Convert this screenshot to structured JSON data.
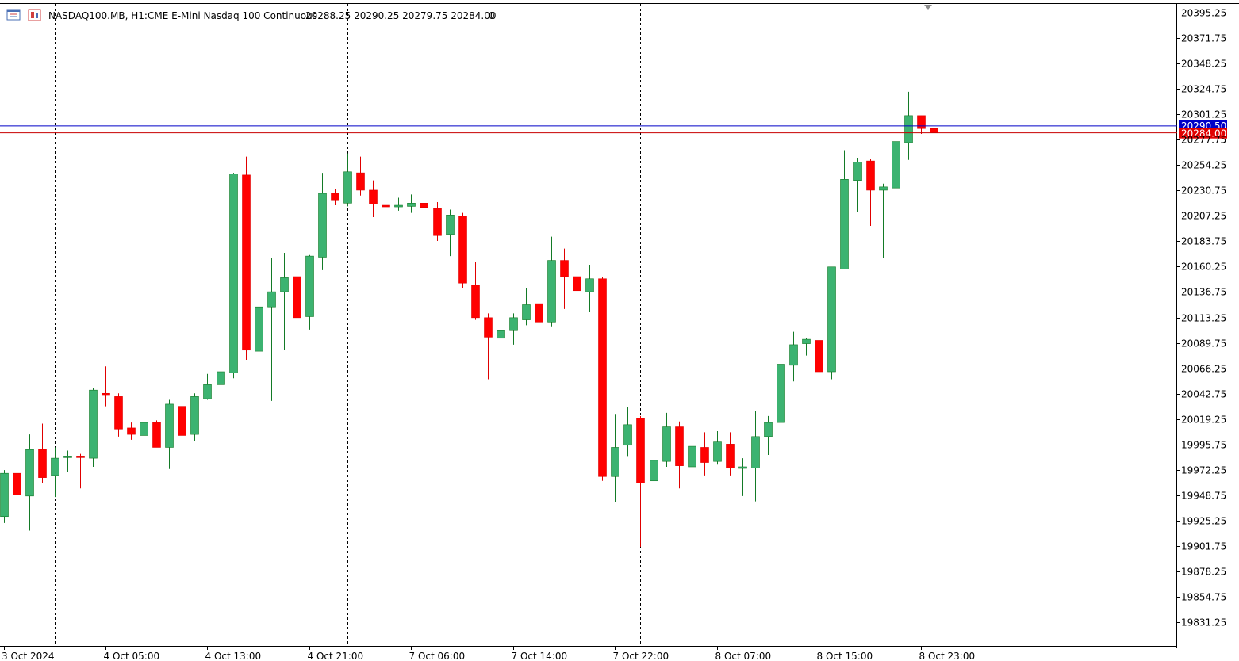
{
  "header": {
    "symbol": "NASDAQ100.MB, H1:",
    "description": "CME E-Mini Nasdaq 100 Continuous",
    "ohlc": "20288.25 20290.25 20279.75 20284.00",
    "volume": "0"
  },
  "icons": [
    "chart-menu-icon",
    "chart-window-icon"
  ],
  "colors": {
    "bull": "#3cb371",
    "bear": "#ff0000",
    "bid_line": "#0000c8",
    "ask_line": "#c80000",
    "bid_tag": "#0000c8",
    "ask_tag": "#e00000"
  },
  "price_tags": {
    "bid": "20290.50",
    "ask": "20284.00"
  },
  "chart_data": {
    "type": "candlestick",
    "y_ticks": [
      "20395.25",
      "20371.75",
      "20348.25",
      "20324.75",
      "20301.25",
      "20277.75",
      "20254.25",
      "20230.75",
      "20207.25",
      "20183.75",
      "20160.25",
      "20136.75",
      "20113.25",
      "20089.75",
      "20066.25",
      "20042.75",
      "20019.25",
      "19995.75",
      "19972.25",
      "19948.75",
      "19925.25",
      "19901.75",
      "19878.25",
      "19854.75",
      "19831.25"
    ],
    "ylim": [
      19818,
      20403
    ],
    "x_labels": [
      "3 Oct 2024",
      "4 Oct 05:00",
      "4 Oct 13:00",
      "4 Oct 21:00",
      "7 Oct 06:00",
      "7 Oct 14:00",
      "7 Oct 22:00",
      "8 Oct 07:00",
      "8 Oct 15:00",
      "8 Oct 23:00"
    ],
    "x_label_index": [
      0,
      8,
      16,
      24,
      32,
      40,
      48,
      56,
      64,
      72
    ],
    "period_separator_index": [
      4,
      27,
      50,
      73
    ],
    "bid_price": 20290.5,
    "ask_price": 20284.0,
    "candles": [
      [
        19929.0,
        19972.0,
        19923.0,
        19969.0
      ],
      [
        19969.0,
        19977.0,
        19939.0,
        19949.0
      ],
      [
        19948.0,
        20005.0,
        19916.0,
        19991.0
      ],
      [
        19991.0,
        20015.0,
        19960.0,
        19965.0
      ],
      [
        19967.0,
        19993.0,
        19947.0,
        19983.0
      ],
      [
        19984.0,
        19990.0,
        19970.0,
        19985.0
      ],
      [
        19985.0,
        19987.0,
        19955.0,
        19984.0
      ],
      [
        19983.0,
        20048.0,
        19975.0,
        20046.0
      ],
      [
        20043.0,
        20068.0,
        20031.0,
        20041.0
      ],
      [
        20040.0,
        20043.0,
        20003.0,
        20010.0
      ],
      [
        20011.0,
        20016.0,
        20000.0,
        20005.0
      ],
      [
        20004.0,
        20026.0,
        20000.0,
        20016.0
      ],
      [
        20016.0,
        20018.0,
        19993.0,
        19993.0
      ],
      [
        19993.0,
        20037.0,
        19973.0,
        20033.0
      ],
      [
        20031.0,
        20038.0,
        20001.0,
        20004.0
      ],
      [
        20005.0,
        20043.0,
        19999.0,
        20040.0
      ],
      [
        20038.0,
        20061.0,
        20037.0,
        20051.0
      ],
      [
        20051.0,
        20071.0,
        20045.0,
        20063.0
      ],
      [
        20062.0,
        20247.0,
        20057.0,
        20246.0
      ],
      [
        20245.0,
        20262.0,
        20074.0,
        20083.0
      ],
      [
        20082.0,
        20134.0,
        20012.0,
        20123.0
      ],
      [
        20123.0,
        20168.0,
        20036.0,
        20137.0
      ],
      [
        20137.0,
        20173.0,
        20083.0,
        20150.0
      ],
      [
        20151.0,
        20168.0,
        20083.0,
        20113.0
      ],
      [
        20114.0,
        20171.0,
        20102.0,
        20170.0
      ],
      [
        20169.0,
        20247.0,
        20157.0,
        20228.0
      ],
      [
        20228.0,
        20232.0,
        20217.0,
        20222.0
      ],
      [
        20219.0,
        20265.0,
        20216.0,
        20248.0
      ],
      [
        20247.0,
        20262.0,
        20226.0,
        20231.0
      ],
      [
        20231.0,
        20240.0,
        20206.0,
        20218.0
      ],
      [
        20217.0,
        20262.0,
        20208.0,
        20216.0
      ],
      [
        20216.0,
        20224.0,
        20212.0,
        20217.0
      ],
      [
        20216.0,
        20227.0,
        20210.0,
        20219.0
      ],
      [
        20219.0,
        20234.0,
        20213.0,
        20215.0
      ],
      [
        20214.0,
        20220.0,
        20184.0,
        20189.0
      ],
      [
        20190.0,
        20213.0,
        20170.0,
        20208.0
      ],
      [
        20207.0,
        20210.0,
        20140.0,
        20145.0
      ],
      [
        20143.0,
        20165.0,
        20111.0,
        20113.0
      ],
      [
        20113.0,
        20117.0,
        20056.0,
        20095.0
      ],
      [
        20094.0,
        20105.0,
        20078.0,
        20101.0
      ],
      [
        20101.0,
        20117.0,
        20088.0,
        20113.0
      ],
      [
        20111.0,
        20140.0,
        20106.0,
        20125.0
      ],
      [
        20126.0,
        20168.0,
        20090.0,
        20109.0
      ],
      [
        20109.0,
        20188.0,
        20105.0,
        20166.0
      ],
      [
        20166.0,
        20177.0,
        20121.0,
        20151.0
      ],
      [
        20151.0,
        20163.0,
        20109.0,
        20138.0
      ],
      [
        20137.0,
        20162.0,
        20118.0,
        20149.0
      ],
      [
        20149.0,
        20151.0,
        19962.0,
        19966.0
      ],
      [
        19966.0,
        20024.0,
        19942.0,
        19993.0
      ],
      [
        19995.0,
        20030.0,
        19985.0,
        20014.0
      ],
      [
        20020.0,
        20022.0,
        19901.0,
        19960.0
      ],
      [
        19962.0,
        19990.0,
        19953.0,
        19981.0
      ],
      [
        19980.0,
        20025.0,
        19975.0,
        20012.0
      ],
      [
        20012.0,
        20017.0,
        19955.0,
        19976.0
      ],
      [
        19975.0,
        20005.0,
        19954.0,
        19994.0
      ],
      [
        19993.0,
        20007.0,
        19967.0,
        19979.0
      ],
      [
        19980.0,
        20008.0,
        19977.0,
        19998.0
      ],
      [
        19996.0,
        20007.0,
        19967.0,
        19974.0
      ],
      [
        19975.0,
        19983.0,
        19948.0,
        19975.0
      ],
      [
        19974.0,
        20027.0,
        19943.0,
        20003.0
      ],
      [
        20003.0,
        20022.0,
        19986.0,
        20016.0
      ],
      [
        20016.0,
        20090.0,
        20013.0,
        20070.0
      ],
      [
        20069.0,
        20100.0,
        20054.0,
        20088.0
      ],
      [
        20089.0,
        20094.0,
        20078.0,
        20093.0
      ],
      [
        20092.0,
        20098.0,
        20059.0,
        20063.0
      ],
      [
        20063.0,
        20159.0,
        20056.0,
        20160.0
      ],
      [
        20158.0,
        20268.0,
        20158.0,
        20241.0
      ],
      [
        20240.0,
        20261.0,
        20211.0,
        20257.0
      ],
      [
        20258.0,
        20260.0,
        20198.0,
        20231.0
      ],
      [
        20231.0,
        20237.0,
        20168.0,
        20234.0
      ],
      [
        20233.0,
        20283.0,
        20226.0,
        20276.0
      ],
      [
        20275.0,
        20322.0,
        20259.0,
        20300.0
      ],
      [
        20300.0,
        20300.0,
        20283.0,
        20288.0
      ],
      [
        20288.0,
        20290.0,
        20280.0,
        20284.0
      ]
    ]
  }
}
